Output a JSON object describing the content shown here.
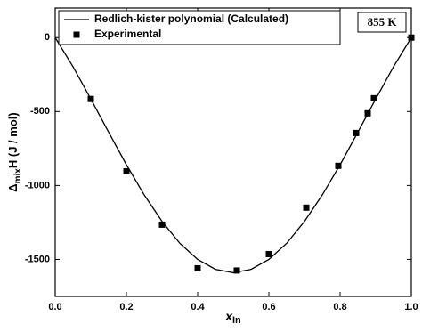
{
  "chart_data": {
    "type": "line-scatter",
    "x_label": {
      "main": "x",
      "sub": "In"
    },
    "y_label": {
      "symbol": "Δ",
      "sub": "mix",
      "main": "H (J / mol)"
    },
    "annotation": "855 K",
    "legend": "top-left",
    "xlim": [
      0,
      1
    ],
    "ylim": [
      -1750,
      200
    ],
    "xticks": [
      {
        "value": 0,
        "label": "0.0"
      },
      0.2,
      0.4,
      0.6,
      0.8,
      {
        "value": 1,
        "label": "1.0"
      }
    ],
    "yticks": [
      0,
      -500,
      -1000,
      -1500
    ],
    "series": [
      {
        "name": "Redlich-kister polynomial (Calculated)",
        "kind": "line",
        "color": "#000000",
        "x": [
          0,
          0.05,
          0.1,
          0.15,
          0.2,
          0.25,
          0.3,
          0.35,
          0.4,
          0.45,
          0.5,
          0.55,
          0.6,
          0.65,
          0.7,
          0.75,
          0.8,
          0.85,
          0.9,
          0.95,
          1
        ],
        "values": [
          0,
          -197,
          -415,
          -639,
          -860,
          -1064,
          -1243,
          -1391,
          -1500,
          -1567,
          -1590,
          -1567,
          -1500,
          -1391,
          -1243,
          -1064,
          -860,
          -639,
          -415,
          -197,
          0
        ]
      },
      {
        "name": "Experimental",
        "kind": "scatter",
        "color": "#000000",
        "x": [
          0.1,
          0.2,
          0.3,
          0.4,
          0.51,
          0.6,
          0.705,
          0.795,
          0.845,
          0.8775,
          0.895,
          1
        ],
        "values": [
          -415,
          -904,
          -1265,
          -1560,
          -1575,
          -1464,
          -1150,
          -867,
          -645,
          -512,
          -410,
          0
        ]
      }
    ]
  }
}
